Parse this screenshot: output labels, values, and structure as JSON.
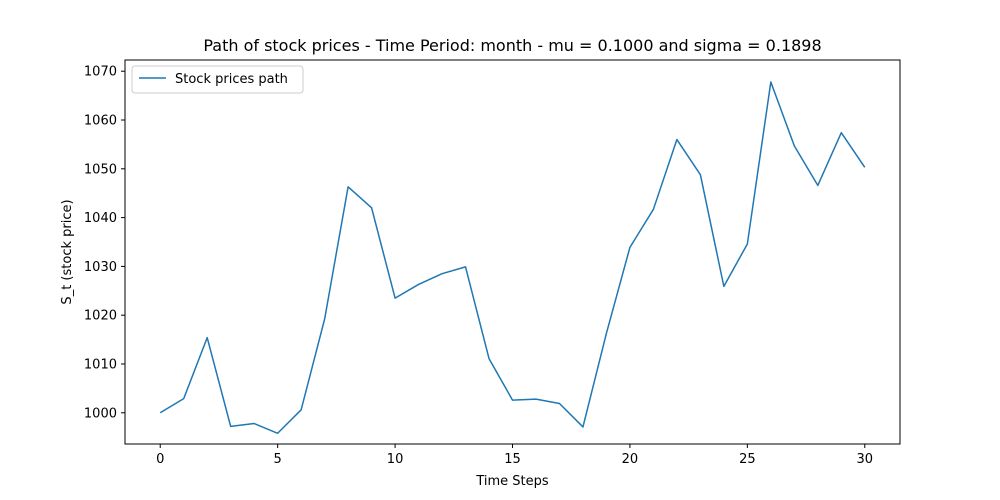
{
  "chart_data": {
    "type": "line",
    "title": "Path of stock prices - Time Period: month - mu = 0.1000 and sigma = 0.1898",
    "xlabel": "Time Steps",
    "ylabel": "S_t (stock price)",
    "xlim": [
      -1.5,
      31.5
    ],
    "ylim": [
      993.6,
      1072.3
    ],
    "xticks": [
      0,
      5,
      10,
      15,
      20,
      25,
      30
    ],
    "yticks": [
      1000,
      1010,
      1020,
      1030,
      1040,
      1050,
      1060,
      1070
    ],
    "grid": false,
    "legend_position": "top-left",
    "series": [
      {
        "name": "Stock prices path",
        "color": "#1f77b4",
        "x": [
          0,
          1,
          2,
          3,
          4,
          5,
          6,
          7,
          8,
          9,
          10,
          11,
          12,
          13,
          14,
          15,
          16,
          17,
          18,
          19,
          20,
          21,
          22,
          23,
          24,
          25,
          26,
          27,
          28,
          29,
          30
        ],
        "y": [
          1000.0,
          1002.9,
          1015.4,
          997.2,
          997.8,
          995.8,
          1000.6,
          1019.2,
          1046.3,
          1042.0,
          1023.5,
          1026.3,
          1028.5,
          1029.9,
          1011.1,
          1002.6,
          1002.8,
          1001.9,
          997.1,
          1016.3,
          1033.9,
          1041.7,
          1056.0,
          1048.8,
          1025.9,
          1034.6,
          1067.8,
          1054.7,
          1046.6,
          1057.4,
          1050.3
        ]
      }
    ]
  }
}
